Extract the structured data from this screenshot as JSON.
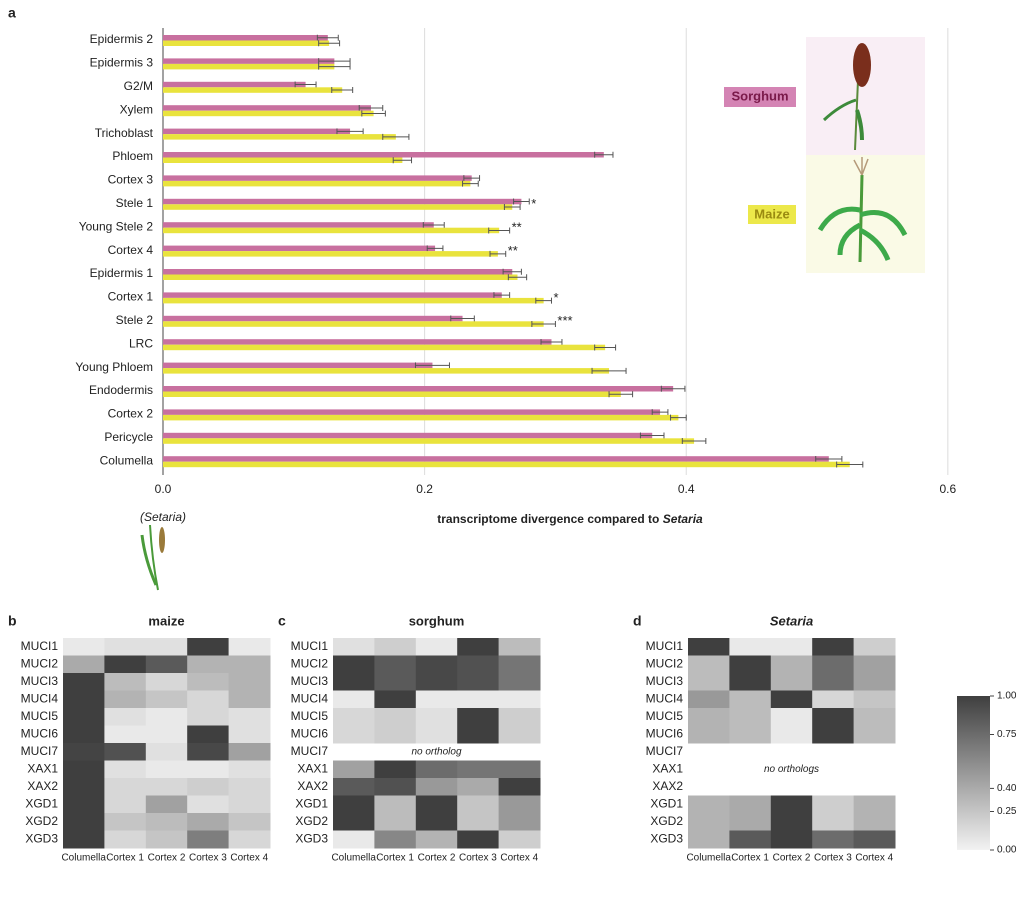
{
  "chart_data": [
    {
      "type": "bar",
      "orientation": "horizontal",
      "panel": "a",
      "categories": [
        "Epidermis 2",
        "Epidermis 3",
        "G2/M",
        "Xylem",
        "Trichoblast",
        "Phloem",
        "Cortex 3",
        "Stele 1",
        "Young Stele 2",
        "Cortex 4",
        "Epidermis 1",
        "Cortex 1",
        "Stele 2",
        "LRC",
        "Young Phloem",
        "Endodermis",
        "Cortex 2",
        "Pericycle",
        "Columella"
      ],
      "series": [
        {
          "name": "Sorghum",
          "color": "#c8709f",
          "values": [
            0.126,
            0.131,
            0.109,
            0.159,
            0.143,
            0.337,
            0.236,
            0.274,
            0.207,
            0.208,
            0.267,
            0.259,
            0.229,
            0.297,
            0.206,
            0.39,
            0.38,
            0.374,
            0.509
          ],
          "errors": [
            0.008,
            0.012,
            0.008,
            0.009,
            0.01,
            0.007,
            0.006,
            0.006,
            0.008,
            0.006,
            0.007,
            0.006,
            0.009,
            0.008,
            0.013,
            0.009,
            0.006,
            0.009,
            0.01
          ]
        },
        {
          "name": "Maize",
          "color": "#e9e33d",
          "values": [
            0.127,
            0.131,
            0.137,
            0.161,
            0.178,
            0.183,
            0.235,
            0.267,
            0.257,
            0.256,
            0.271,
            0.291,
            0.291,
            0.338,
            0.341,
            0.35,
            0.394,
            0.406,
            0.525
          ],
          "errors": [
            0.008,
            0.012,
            0.008,
            0.009,
            0.01,
            0.007,
            0.006,
            0.006,
            0.008,
            0.006,
            0.007,
            0.006,
            0.009,
            0.008,
            0.013,
            0.009,
            0.006,
            0.009,
            0.01
          ]
        }
      ],
      "significance": [
        null,
        null,
        null,
        null,
        null,
        null,
        null,
        "*",
        "**",
        "**",
        null,
        "*",
        "***",
        null,
        null,
        null,
        null,
        null,
        null
      ],
      "xlim": [
        0,
        0.62
      ],
      "xticks": [
        {
          "value": 0,
          "label": "0.0"
        },
        0.2,
        0.4,
        0.6
      ],
      "grid": true,
      "xlabel": "transcriptome divergence compared to",
      "xlabel_italic": "Setaria",
      "reference_label": "(Setaria)"
    },
    {
      "type": "heatmap",
      "panel": "b",
      "title": "maize",
      "rows": [
        "MUCI1",
        "MUCI2",
        "MUCI3",
        "MUCI4",
        "MUCI5",
        "MUCI6",
        "MUCI7",
        "XAX1",
        "XAX2",
        "XGD1",
        "XGD2",
        "XGD3"
      ],
      "columns": [
        "Columella",
        "Cortex 1",
        "Cortex 2",
        "Cortex 3",
        "Cortex 4"
      ],
      "values": [
        [
          0.05,
          0.1,
          0.1,
          1,
          0.05
        ],
        [
          0.4,
          1,
          0.85,
          0.35,
          0.35
        ],
        [
          1,
          0.3,
          0.15,
          0.3,
          0.35
        ],
        [
          1,
          0.35,
          0.25,
          0.15,
          0.35
        ],
        [
          1,
          0.1,
          0.05,
          0.15,
          0.1
        ],
        [
          1,
          0.05,
          0.05,
          1,
          0.1
        ],
        [
          0.97,
          0.9,
          0.1,
          0.95,
          0.45
        ],
        [
          1,
          0.1,
          0.05,
          0.05,
          0.1
        ],
        [
          1,
          0.15,
          0.15,
          0.2,
          0.15
        ],
        [
          1,
          0.15,
          0.45,
          0.1,
          0.15
        ],
        [
          1,
          0.25,
          0.3,
          0.4,
          0.25
        ],
        [
          1,
          0.15,
          0.25,
          0.65,
          0.15
        ]
      ]
    },
    {
      "type": "heatmap",
      "panel": "c",
      "title": "sorghum",
      "note": "no ortholog",
      "rows": [
        "MUCI1",
        "MUCI2",
        "MUCI3",
        "MUCI4",
        "MUCI5",
        "MUCI6",
        "MUCI7",
        "XAX1",
        "XAX2",
        "XGD1",
        "XGD2",
        "XGD3"
      ],
      "columns": [
        "Columella",
        "Cortex 1",
        "Cortex 2",
        "Cortex 3",
        "Cortex 4"
      ],
      "values": [
        [
          0.1,
          0.2,
          0.05,
          1,
          0.3
        ],
        [
          1,
          0.85,
          0.95,
          0.9,
          0.7
        ],
        [
          1,
          0.85,
          0.95,
          0.9,
          0.7
        ],
        [
          0.05,
          1,
          0.05,
          0.05,
          0.05
        ],
        [
          0.15,
          0.2,
          0.1,
          1,
          0.2
        ],
        [
          0.15,
          0.2,
          0.1,
          1,
          0.2
        ],
        [
          null,
          null,
          null,
          null,
          null
        ],
        [
          0.45,
          1,
          0.75,
          0.7,
          0.7
        ],
        [
          0.85,
          0.9,
          0.5,
          0.4,
          1
        ],
        [
          1,
          0.3,
          1,
          0.25,
          0.5
        ],
        [
          1,
          0.3,
          1,
          0.25,
          0.5
        ],
        [
          0.05,
          0.6,
          0.35,
          1,
          0.2
        ]
      ]
    },
    {
      "type": "heatmap",
      "panel": "d",
      "title": "Setaria",
      "title_italic": true,
      "note": "no orthologs",
      "rows": [
        "MUCI1",
        "MUCI2",
        "MUCI3",
        "MUCI4",
        "MUCI5",
        "MUCI6",
        "MUCI7",
        "XAX1",
        "XAX2",
        "XGD1",
        "XGD2",
        "XGD3"
      ],
      "columns": [
        "Columella",
        "Cortex 1",
        "Cortex 2",
        "Cortex 3",
        "Cortex 4"
      ],
      "values": [
        [
          1,
          0.05,
          0.05,
          1,
          0.2
        ],
        [
          0.3,
          1,
          0.35,
          0.75,
          0.45
        ],
        [
          0.3,
          1,
          0.35,
          0.75,
          0.45
        ],
        [
          0.5,
          0.3,
          1,
          0.15,
          0.25
        ],
        [
          0.35,
          0.3,
          0.05,
          1,
          0.3
        ],
        [
          0.35,
          0.3,
          0.05,
          1,
          0.3
        ],
        [
          null,
          null,
          null,
          null,
          null
        ],
        [
          null,
          null,
          null,
          null,
          null
        ],
        [
          null,
          null,
          null,
          null,
          null
        ],
        [
          0.35,
          0.4,
          1,
          0.2,
          0.35
        ],
        [
          0.35,
          0.4,
          1,
          0.2,
          0.35
        ],
        [
          0.35,
          0.85,
          1,
          0.75,
          0.85
        ]
      ]
    }
  ],
  "colorbar": {
    "clim": [
      0,
      1
    ],
    "colors": [
      "#f2f2f2",
      "#3f3f3f"
    ],
    "ticks": [
      {
        "value": 0,
        "label": "0.00"
      },
      {
        "value": 0.25,
        "label": "0.25"
      },
      {
        "value": 0.4,
        "label": "0.40"
      },
      {
        "value": 0.75,
        "label": "0.75"
      },
      {
        "value": 1,
        "label": "1.00"
      }
    ]
  }
}
